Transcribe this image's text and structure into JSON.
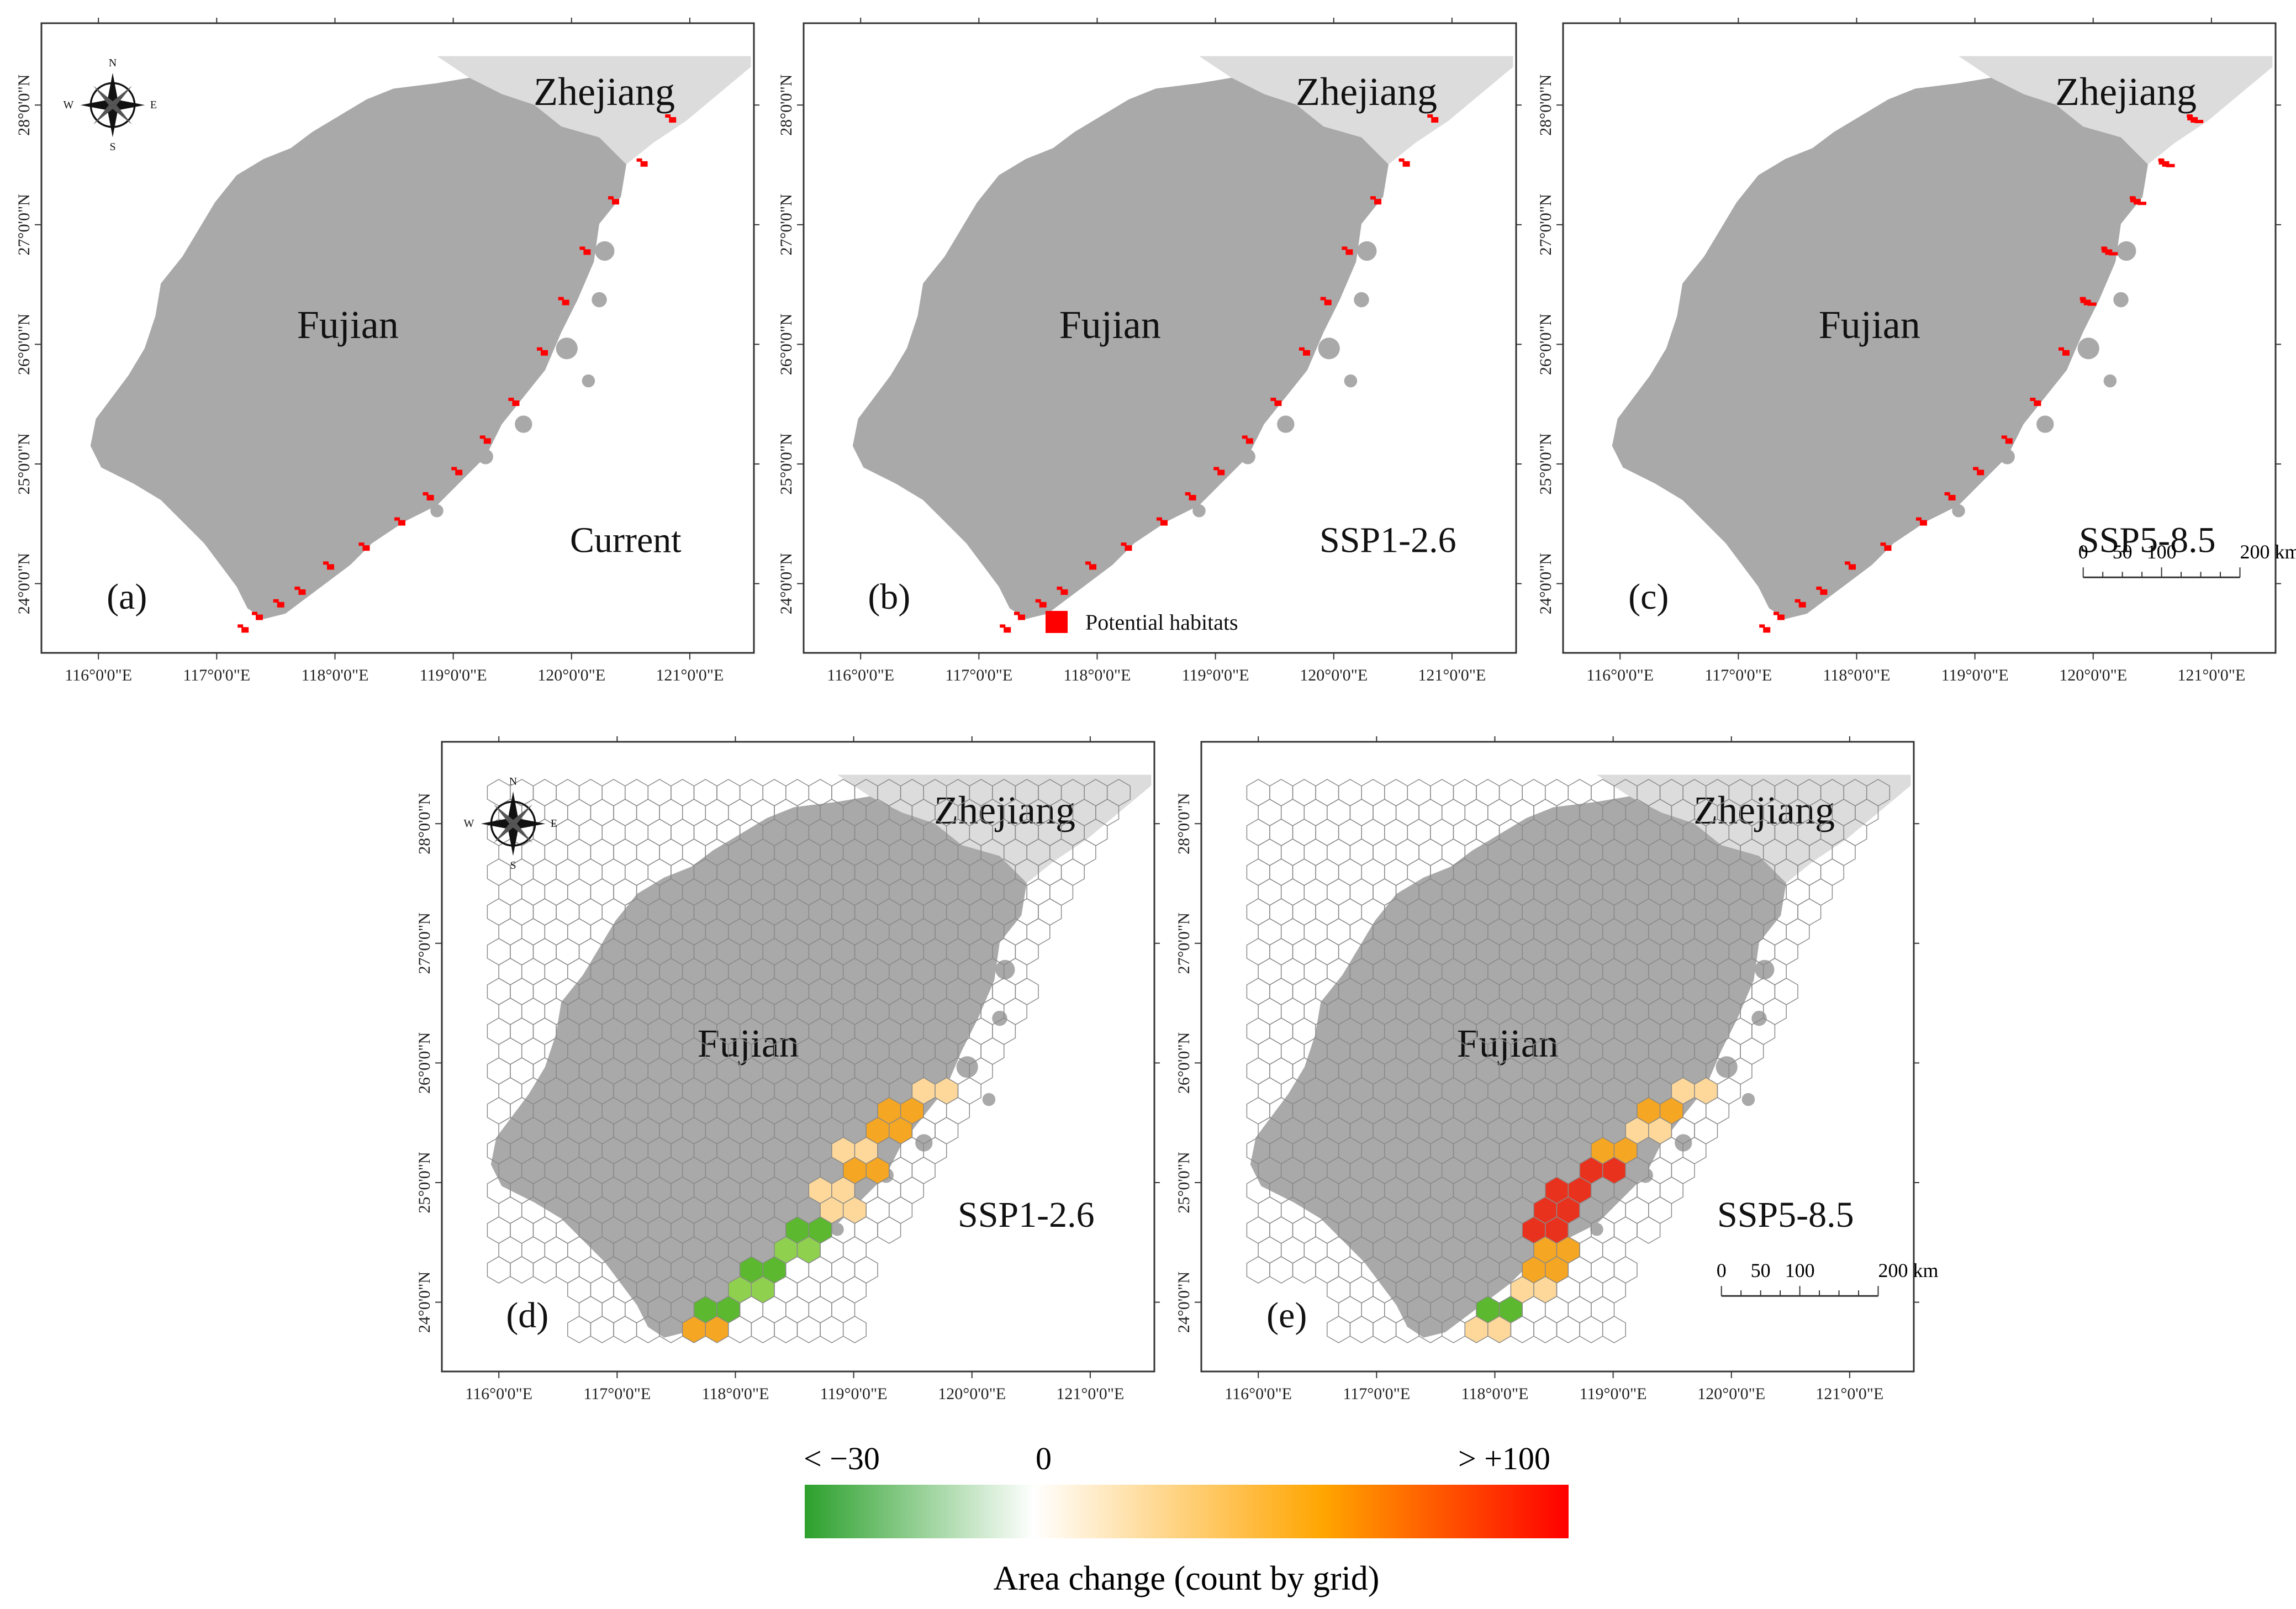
{
  "figure_title": "",
  "panels": [
    {
      "id": "a",
      "label": "(a)",
      "scenario": "Current",
      "type": "habitat"
    },
    {
      "id": "b",
      "label": "(b)",
      "scenario": "SSP1-2.6",
      "type": "habitat"
    },
    {
      "id": "c",
      "label": "(c)",
      "scenario": "SSP5-8.5",
      "type": "habitat"
    },
    {
      "id": "d",
      "label": "(d)",
      "scenario": "SSP1-2.6",
      "type": "hex-change"
    },
    {
      "id": "e",
      "label": "(e)",
      "scenario": "SSP5-8.5",
      "type": "hex-change"
    }
  ],
  "provinces": {
    "main": "Fujian",
    "neighbor": "Zhejiang"
  },
  "longitude_ticks": [
    "116°0'0\"E",
    "117°0'0\"E",
    "118°0'0\"E",
    "119°0'0\"E",
    "120°0'0\"E",
    "121°0'0\"E"
  ],
  "latitude_ticks": [
    "24°0'0\"N",
    "25°0'0\"N",
    "26°0'0\"N",
    "27°0'0\"N",
    "28°0'0\"N"
  ],
  "legend": {
    "habitat_label": "Potential habitats",
    "habitat_color": "#ff0000"
  },
  "scale_bar": {
    "labels": [
      "0",
      "50",
      "100",
      "200 km"
    ]
  },
  "compass": {
    "N": "N",
    "S": "S",
    "E": "E",
    "W": "W"
  },
  "colorbar": {
    "min_label": "< −30",
    "mid_label": "0",
    "max_label": "> +100",
    "title": "Area change (count by grid)",
    "colors": [
      "#2ca02c",
      "#ffffff",
      "#ffa500",
      "#ff0000"
    ]
  },
  "colors": {
    "fujian": "#a9a9a9",
    "zhejiang": "#dcdcdc",
    "habitat": "#ff0000",
    "hex_outline": "#8a8a8a"
  }
}
